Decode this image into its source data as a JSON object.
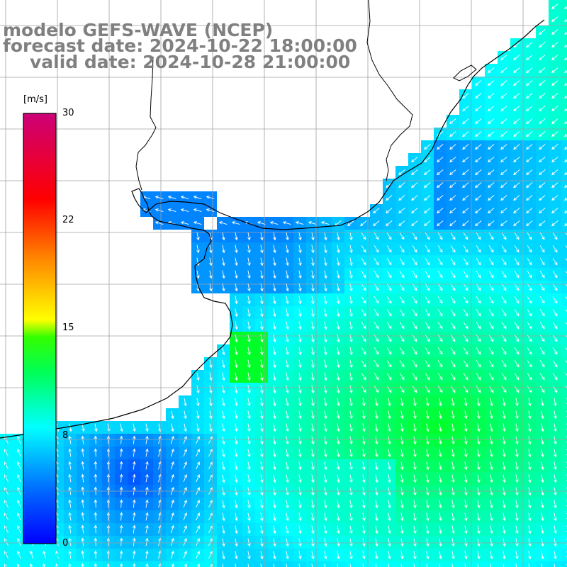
{
  "title": {
    "line1": "modelo GEFS-WAVE (NCEP)",
    "line2": "forecast date: 2024-10-22 18:00:00",
    "line3": "valid date: 2024-10-28 21:00:00"
  },
  "colorbar": {
    "unit": "[m/s]",
    "min": 0,
    "max": 30,
    "tick_labels": [
      "30",
      "22",
      "15",
      "8",
      "0"
    ],
    "colors": [
      "#0000ff",
      "#0088ff",
      "#00ffff",
      "#00ff00",
      "#ffff00",
      "#ff8800",
      "#ff0000",
      "#cc0066"
    ]
  },
  "map": {
    "field": "wind speed",
    "land_color": "#ffffff",
    "grid_color": "#a0a0a0",
    "coast_color": "#000000",
    "arrow_color": "#ffffff"
  }
}
